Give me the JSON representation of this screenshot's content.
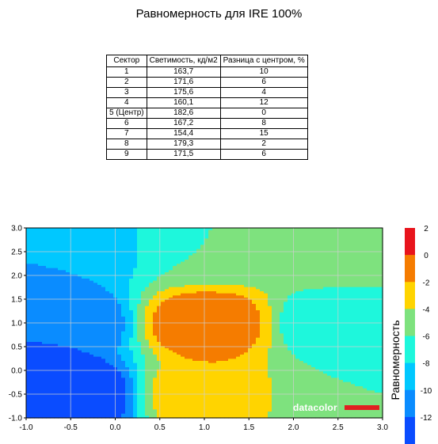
{
  "title": "Равномерность для IRE 100%",
  "table": {
    "headers": [
      "Сектор",
      "Светимость, кд/м2",
      "Разница с центром, %"
    ],
    "rows": [
      [
        "1",
        "163,7",
        "10"
      ],
      [
        "2",
        "171,6",
        "6"
      ],
      [
        "3",
        "175,6",
        "4"
      ],
      [
        "4",
        "160,1",
        "12"
      ],
      [
        "5 (Центр)",
        "182,6",
        "0"
      ],
      [
        "6",
        "167,2",
        "8"
      ],
      [
        "7",
        "154,4",
        "15"
      ],
      [
        "8",
        "179,3",
        "2"
      ],
      [
        "9",
        "171,5",
        "6"
      ]
    ]
  },
  "chart_data": {
    "type": "heatmap",
    "xlim": [
      -1.0,
      3.0
    ],
    "ylim": [
      -1.0,
      3.0
    ],
    "x_ticks": [
      "-1.0",
      "-0.5",
      "0.0",
      "0.5",
      "1.0",
      "1.5",
      "2.0",
      "2.5",
      "3.0"
    ],
    "y_ticks": [
      "3.0",
      "2.5",
      "2.0",
      "1.5",
      "1.0",
      "0.5",
      "0.0",
      "-0.5",
      "-1.0"
    ],
    "grid": true,
    "colorbar": {
      "label": "Равномерность",
      "ticks": [
        "2",
        "0",
        "-2",
        "-4",
        "-6",
        "-8",
        "-10",
        "-12"
      ],
      "levels": [
        {
          "range": [
            0,
            2
          ],
          "color": "#e8141c"
        },
        {
          "range": [
            -2,
            0
          ],
          "color": "#f57c00"
        },
        {
          "range": [
            -4,
            -2
          ],
          "color": "#ffd400"
        },
        {
          "range": [
            -6,
            -4
          ],
          "color": "#7ee27e"
        },
        {
          "range": [
            -8,
            -6
          ],
          "color": "#1ef7dc"
        },
        {
          "range": [
            -10,
            -8
          ],
          "color": "#00c8ff"
        },
        {
          "range": [
            -12,
            -10
          ],
          "color": "#0a8cff"
        },
        {
          "range": [
            -14,
            -12
          ],
          "color": "#0a4cff"
        }
      ]
    },
    "sectors": [
      {
        "sector": "1",
        "x": -0.5,
        "y": 2.5,
        "value": -10
      },
      {
        "sector": "2",
        "x": 1.0,
        "y": 2.5,
        "value": -6
      },
      {
        "sector": "3",
        "x": 2.5,
        "y": 2.5,
        "value": -4
      },
      {
        "sector": "4",
        "x": -0.5,
        "y": 1.0,
        "value": -12
      },
      {
        "sector": "5 (Центр)",
        "x": 1.0,
        "y": 1.0,
        "value": 0
      },
      {
        "sector": "6",
        "x": 2.5,
        "y": 1.0,
        "value": -8
      },
      {
        "sector": "7",
        "x": -0.5,
        "y": -0.5,
        "value": -15
      },
      {
        "sector": "8",
        "x": 1.0,
        "y": -0.5,
        "value": -2
      },
      {
        "sector": "9",
        "x": 2.5,
        "y": -0.5,
        "value": -6
      }
    ]
  },
  "watermark": "datacolor"
}
